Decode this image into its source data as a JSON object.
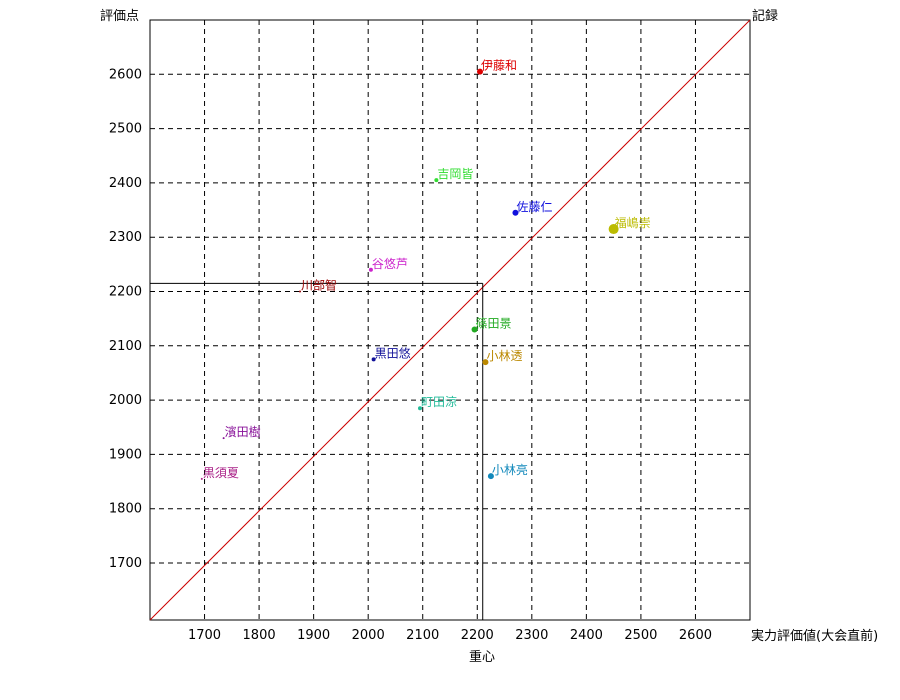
{
  "chart_data": {
    "type": "scatter",
    "ylabel": "評価点",
    "xlabel": "実力評価値(大会直前)",
    "diag_label": "記録",
    "center_label": "重心",
    "xlim": [
      1600,
      2700
    ],
    "ylim": [
      1595,
      2700
    ],
    "xticks": [
      1700,
      1800,
      1900,
      2000,
      2100,
      2200,
      2300,
      2400,
      2500,
      2600
    ],
    "yticks": [
      1700,
      1800,
      1900,
      2000,
      2100,
      2200,
      2300,
      2400,
      2500,
      2600
    ],
    "grid": true,
    "diagonal_color": "#cc0000",
    "center": {
      "x": 2210,
      "y": 2215
    },
    "points": [
      {
        "name": "伊藤和",
        "x": 2205,
        "y": 2605,
        "color": "#dd0000",
        "size": 3
      },
      {
        "name": "吉岡皆",
        "x": 2125,
        "y": 2405,
        "color": "#33dd33",
        "size": 2
      },
      {
        "name": "佐藤仁",
        "x": 2270,
        "y": 2345,
        "color": "#1111dd",
        "size": 3
      },
      {
        "name": "福嶋崇",
        "x": 2450,
        "y": 2315,
        "color": "#bbbb00",
        "size": 5
      },
      {
        "name": "谷悠芦",
        "x": 2005,
        "y": 2240,
        "color": "#cc22cc",
        "size": 2
      },
      {
        "name": "川部智",
        "x": 1875,
        "y": 2200,
        "color": "#990000",
        "size": 1
      },
      {
        "name": "篠田景",
        "x": 2195,
        "y": 2130,
        "color": "#22aa22",
        "size": 3
      },
      {
        "name": "黒田悠",
        "x": 2010,
        "y": 2075,
        "color": "#111199",
        "size": 2
      },
      {
        "name": "小林透",
        "x": 2215,
        "y": 2070,
        "color": "#bb8800",
        "size": 3
      },
      {
        "name": "町田涼",
        "x": 2095,
        "y": 1985,
        "color": "#22bb99",
        "size": 2
      },
      {
        "name": "濱田樹",
        "x": 1735,
        "y": 1930,
        "color": "#881199",
        "size": 1
      },
      {
        "name": "黒須夏",
        "x": 1695,
        "y": 1855,
        "color": "#aa2288",
        "size": 1
      },
      {
        "name": "小林亮",
        "x": 2225,
        "y": 1860,
        "color": "#1188bb",
        "size": 3
      }
    ]
  }
}
